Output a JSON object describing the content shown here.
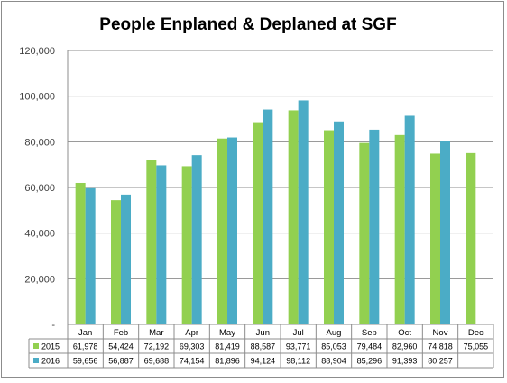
{
  "chart_data": {
    "type": "bar",
    "title": "People Enplaned & Deplaned at SGF",
    "categories": [
      "Jan",
      "Feb",
      "Mar",
      "Apr",
      "May",
      "Jun",
      "Jul",
      "Aug",
      "Sep",
      "Oct",
      "Nov",
      "Dec"
    ],
    "series": [
      {
        "name": "2015",
        "color": "#92d050",
        "values": [
          61978,
          54424,
          72192,
          69303,
          81419,
          88587,
          93771,
          85053,
          79484,
          82960,
          74818,
          75055
        ],
        "labels": [
          "61,978",
          "54,424",
          "72,192",
          "69,303",
          "81,419",
          "88,587",
          "93,771",
          "85,053",
          "79,484",
          "82,960",
          "74,818",
          "75,055"
        ]
      },
      {
        "name": "2016",
        "color": "#4bacc6",
        "values": [
          59656,
          56887,
          69688,
          74154,
          81896,
          94124,
          98112,
          88904,
          85296,
          91393,
          80257,
          null
        ],
        "labels": [
          "59,656",
          "56,887",
          "69,688",
          "74,154",
          "81,896",
          "94,124",
          "98,112",
          "88,904",
          "85,296",
          "91,393",
          "80,257",
          ""
        ]
      }
    ],
    "ylim": [
      0,
      120000
    ],
    "yticks": [
      0,
      20000,
      40000,
      60000,
      80000,
      100000,
      120000
    ],
    "ytick_labels": [
      "-",
      "20,000",
      "40,000",
      "60,000",
      "80,000",
      "100,000",
      "120,000"
    ],
    "grid": true,
    "legend": "data table",
    "xlabel": "",
    "ylabel": ""
  }
}
